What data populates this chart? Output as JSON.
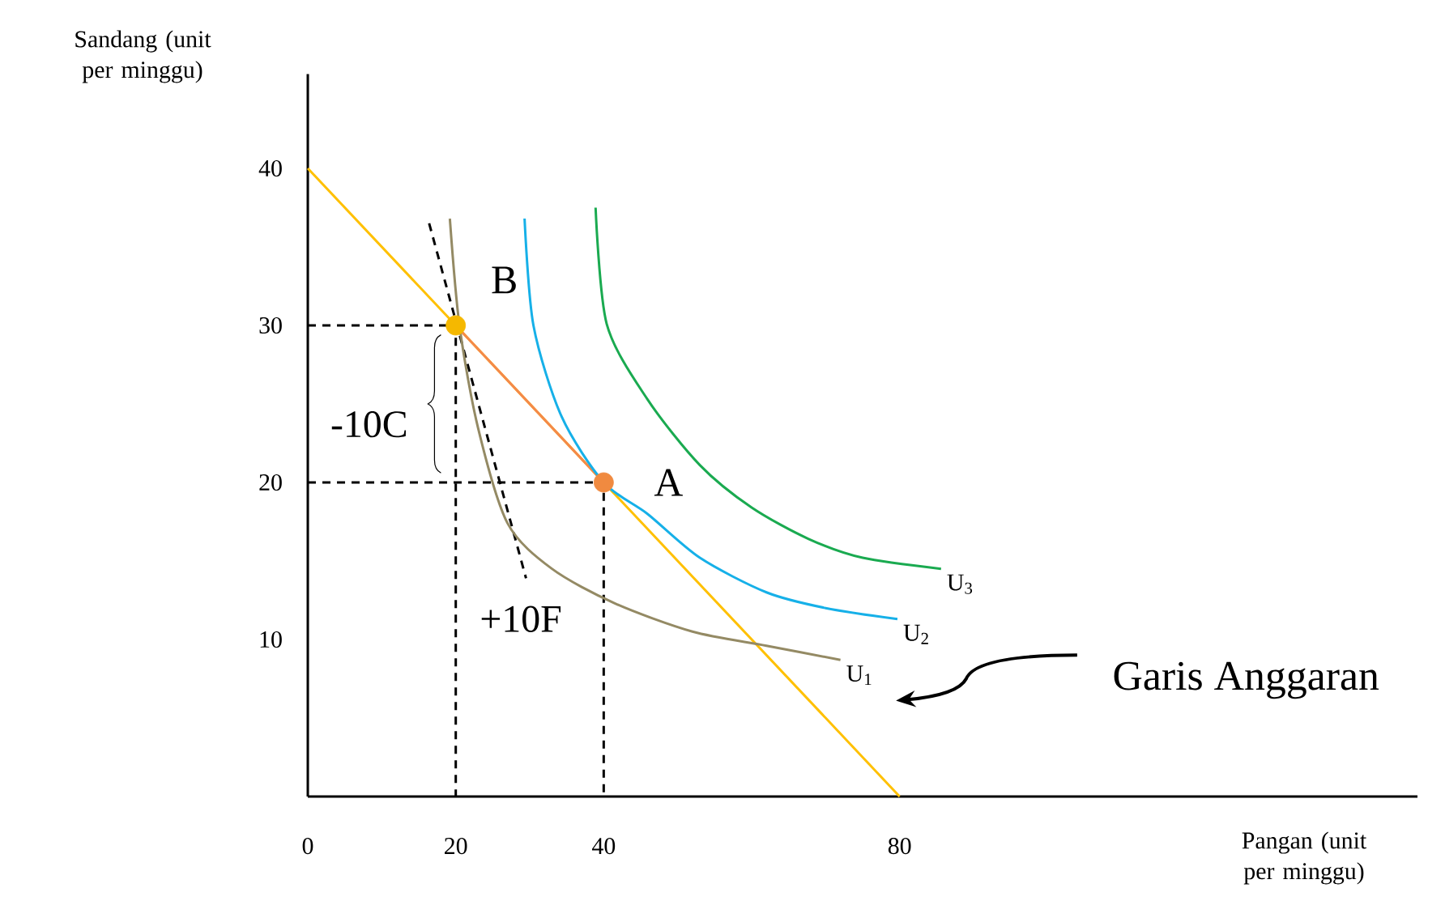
{
  "chart_data": {
    "type": "line",
    "xlabel": "Pangan (unit per minggu)",
    "ylabel": "Sandang (unit per minggu)",
    "xlim": [
      0,
      150
    ],
    "ylim": [
      0,
      46
    ],
    "xticks": [
      0,
      20,
      40,
      80
    ],
    "yticks": [
      10,
      20,
      30,
      40
    ],
    "grid": false,
    "series": [
      {
        "x": [
          0,
          80
        ],
        "values": [
          40,
          0
        ],
        "color": "#ffc000"
      },
      {
        "x": [
          0,
          20,
          20
        ],
        "values": [
          30,
          30,
          0
        ],
        "color": "#000000",
        "line_style": "dashed"
      },
      {
        "x": [
          0,
          40,
          40
        ],
        "values": [
          20,
          20,
          0
        ],
        "color": "#000000",
        "line_style": "dashed"
      },
      {
        "x": [
          16.4,
          29.5
        ],
        "values": [
          36.5,
          13.9
        ],
        "color": "#000000",
        "line_style": "dashed"
      },
      {
        "x": [
          20,
          40
        ],
        "values": [
          30,
          20
        ],
        "color": "#f4894a"
      },
      {
        "name": "U$_{1}$",
        "x": [
          19.2,
          20.5,
          23,
          27,
          33,
          41.5,
          52,
          62,
          72
        ],
        "values": [
          36.8,
          30,
          23.5,
          17.4,
          14.5,
          12.3,
          10.5,
          9.6,
          8.7
        ],
        "color": "#948a64"
      },
      {
        "name": "U$_{2}$",
        "x": [
          29.3,
          30.5,
          34.3,
          40,
          45.9,
          53,
          62,
          70,
          79.7
        ],
        "values": [
          36.8,
          30,
          24.2,
          20,
          18,
          15.2,
          13,
          12,
          11.3
        ],
        "color": "#16b0e8"
      },
      {
        "name": "U$_{3}$",
        "x": [
          38.9,
          40.4,
          45.9,
          53,
          60,
          67.7,
          75,
          85.6
        ],
        "values": [
          37.5,
          30.1,
          25.3,
          21.1,
          18.4,
          16.4,
          15.2,
          14.5
        ],
        "color": "#1aaa50"
      },
      {
        "type": "scatter",
        "x": [
          20,
          40
        ],
        "values": [
          30,
          20
        ],
        "colors": [
          "#f5b800",
          "#f08a40"
        ]
      }
    ],
    "annotations": [
      {
        "text": "B",
        "x": 20,
        "y": 30
      },
      {
        "text": "A",
        "x": 40,
        "y": 20
      },
      "-10C",
      "+10F",
      "Garis Anggaran"
    ]
  }
}
